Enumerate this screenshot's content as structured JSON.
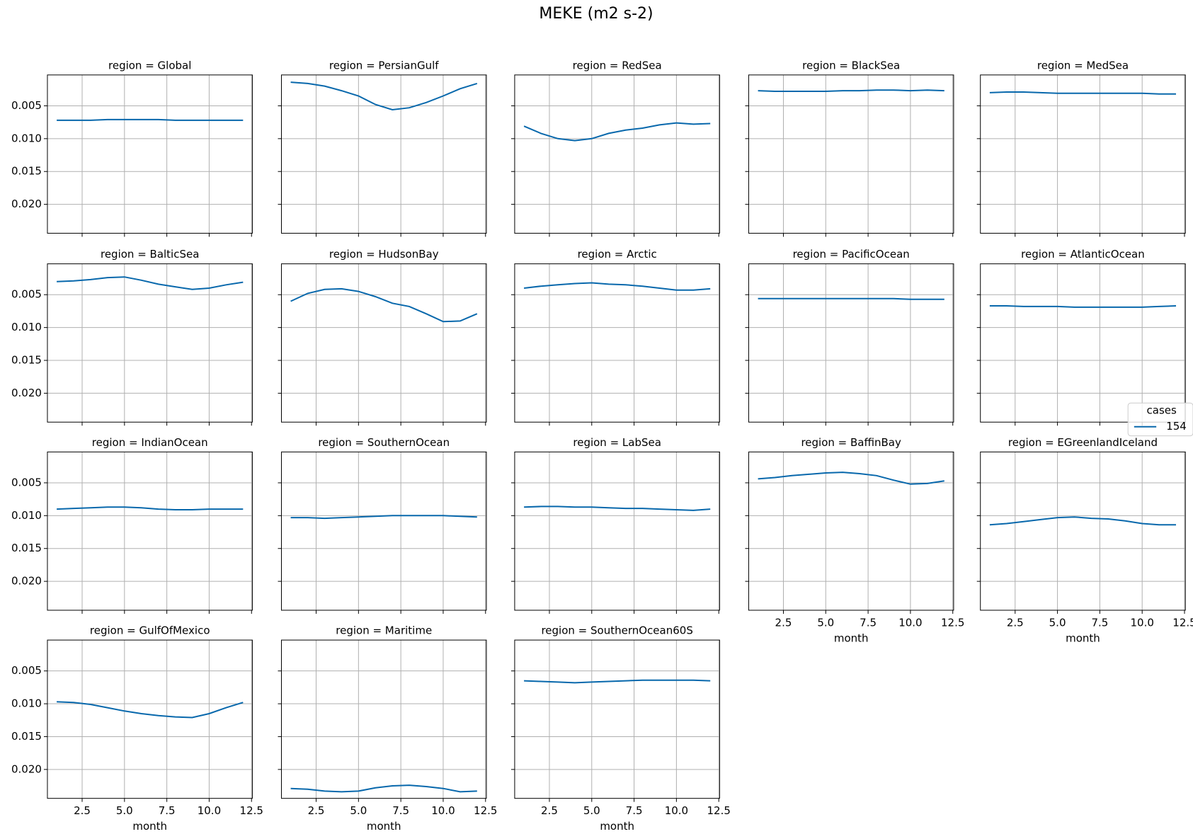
{
  "figure_title": "MEKE (m2 s-2)",
  "xlabel": "month",
  "x": [
    1,
    2,
    3,
    4,
    5,
    6,
    7,
    8,
    9,
    10,
    11,
    12
  ],
  "xlim": [
    0.45,
    12.55
  ],
  "xticks": [
    {
      "value": 2.5,
      "label": "2.5"
    },
    {
      "value": 5,
      "label": "5.0"
    },
    {
      "value": 7.5,
      "label": "7.5"
    },
    {
      "value": 10,
      "label": "10.0"
    },
    {
      "value": 12.5,
      "label": "12.5"
    }
  ],
  "ylim": [
    0.0003,
    0.0244
  ],
  "y_inverted": true,
  "yticks": [
    0.005,
    {
      "value": 0.01,
      "label": "0.010"
    },
    0.015,
    {
      "value": 0.02,
      "label": "0.020"
    }
  ],
  "grid": true,
  "legend": {
    "title": "cases",
    "name": "154",
    "color": "#0868ac"
  },
  "chart_data": [
    {
      "type": "line",
      "title": "region = Global",
      "values": [
        0.0072,
        0.0072,
        0.0072,
        0.0071,
        0.0071,
        0.0071,
        0.0071,
        0.0072,
        0.0072,
        0.0072,
        0.0072,
        0.0072
      ]
    },
    {
      "type": "line",
      "title": "region = PersianGulf",
      "values": [
        0.0014,
        0.0016,
        0.002,
        0.0027,
        0.0035,
        0.0048,
        0.0056,
        0.0053,
        0.0045,
        0.0035,
        0.0024,
        0.0016
      ]
    },
    {
      "type": "line",
      "title": "region = RedSea",
      "values": [
        0.0081,
        0.0092,
        0.01,
        0.0103,
        0.01,
        0.0092,
        0.0087,
        0.0084,
        0.0079,
        0.0076,
        0.0078,
        0.0077
      ]
    },
    {
      "type": "line",
      "title": "region = BlackSea",
      "values": [
        0.0027,
        0.0028,
        0.0028,
        0.0028,
        0.0028,
        0.0027,
        0.0027,
        0.0026,
        0.0026,
        0.0027,
        0.0026,
        0.0027
      ]
    },
    {
      "type": "line",
      "title": "region = MedSea",
      "values": [
        0.003,
        0.0029,
        0.0029,
        0.003,
        0.0031,
        0.0031,
        0.0031,
        0.0031,
        0.0031,
        0.0031,
        0.0032,
        0.0032
      ]
    },
    {
      "type": "line",
      "title": "region = BalticSea",
      "values": [
        0.003,
        0.0029,
        0.0027,
        0.0024,
        0.0023,
        0.0028,
        0.0034,
        0.0038,
        0.0042,
        0.004,
        0.0035,
        0.0031
      ]
    },
    {
      "type": "line",
      "title": "region = HudsonBay",
      "values": [
        0.006,
        0.0048,
        0.0042,
        0.0041,
        0.0045,
        0.0053,
        0.0063,
        0.0068,
        0.0079,
        0.0091,
        0.009,
        0.0079
      ]
    },
    {
      "type": "line",
      "title": "region = Arctic",
      "values": [
        0.004,
        0.0037,
        0.0035,
        0.0033,
        0.0032,
        0.0034,
        0.0035,
        0.0037,
        0.004,
        0.0043,
        0.0043,
        0.0041
      ]
    },
    {
      "type": "line",
      "title": "region = PacificOcean",
      "values": [
        0.0056,
        0.0056,
        0.0056,
        0.0056,
        0.0056,
        0.0056,
        0.0056,
        0.0056,
        0.0056,
        0.0057,
        0.0057,
        0.0057
      ]
    },
    {
      "type": "line",
      "title": "region = AtlanticOcean",
      "values": [
        0.0067,
        0.0067,
        0.0068,
        0.0068,
        0.0068,
        0.0069,
        0.0069,
        0.0069,
        0.0069,
        0.0069,
        0.0068,
        0.0067
      ]
    },
    {
      "type": "line",
      "title": "region = IndianOcean",
      "values": [
        0.009,
        0.0089,
        0.0088,
        0.0087,
        0.0087,
        0.0088,
        0.009,
        0.0091,
        0.0091,
        0.009,
        0.009,
        0.009
      ]
    },
    {
      "type": "line",
      "title": "region = SouthernOcean",
      "values": [
        0.0103,
        0.0103,
        0.0104,
        0.0103,
        0.0102,
        0.0101,
        0.01,
        0.01,
        0.01,
        0.01,
        0.0101,
        0.0102
      ]
    },
    {
      "type": "line",
      "title": "region = LabSea",
      "values": [
        0.0087,
        0.0086,
        0.0086,
        0.0087,
        0.0087,
        0.0088,
        0.0089,
        0.0089,
        0.009,
        0.0091,
        0.0092,
        0.009
      ]
    },
    {
      "type": "line",
      "title": "region = BaffinBay",
      "values": [
        0.0044,
        0.0042,
        0.0039,
        0.0037,
        0.0035,
        0.0034,
        0.0036,
        0.0039,
        0.0046,
        0.0052,
        0.0051,
        0.0047
      ]
    },
    {
      "type": "line",
      "title": "region = EGreenlandIceland",
      "values": [
        0.0114,
        0.0112,
        0.0109,
        0.0106,
        0.0103,
        0.0102,
        0.0104,
        0.0105,
        0.0108,
        0.0112,
        0.0114,
        0.0114
      ]
    },
    {
      "type": "line",
      "title": "region = GulfOfMexico",
      "values": [
        0.0097,
        0.0098,
        0.0101,
        0.0106,
        0.0111,
        0.0115,
        0.0118,
        0.012,
        0.0121,
        0.0115,
        0.0106,
        0.0098
      ]
    },
    {
      "type": "line",
      "title": "region = Maritime",
      "values": [
        0.0229,
        0.023,
        0.0233,
        0.0234,
        0.0233,
        0.0228,
        0.0225,
        0.0224,
        0.0226,
        0.0229,
        0.0234,
        0.0233
      ]
    },
    {
      "type": "line",
      "title": "region = SouthernOcean60S",
      "values": [
        0.0065,
        0.0066,
        0.0067,
        0.0068,
        0.0067,
        0.0066,
        0.0065,
        0.0064,
        0.0064,
        0.0064,
        0.0064,
        0.0065
      ]
    }
  ]
}
